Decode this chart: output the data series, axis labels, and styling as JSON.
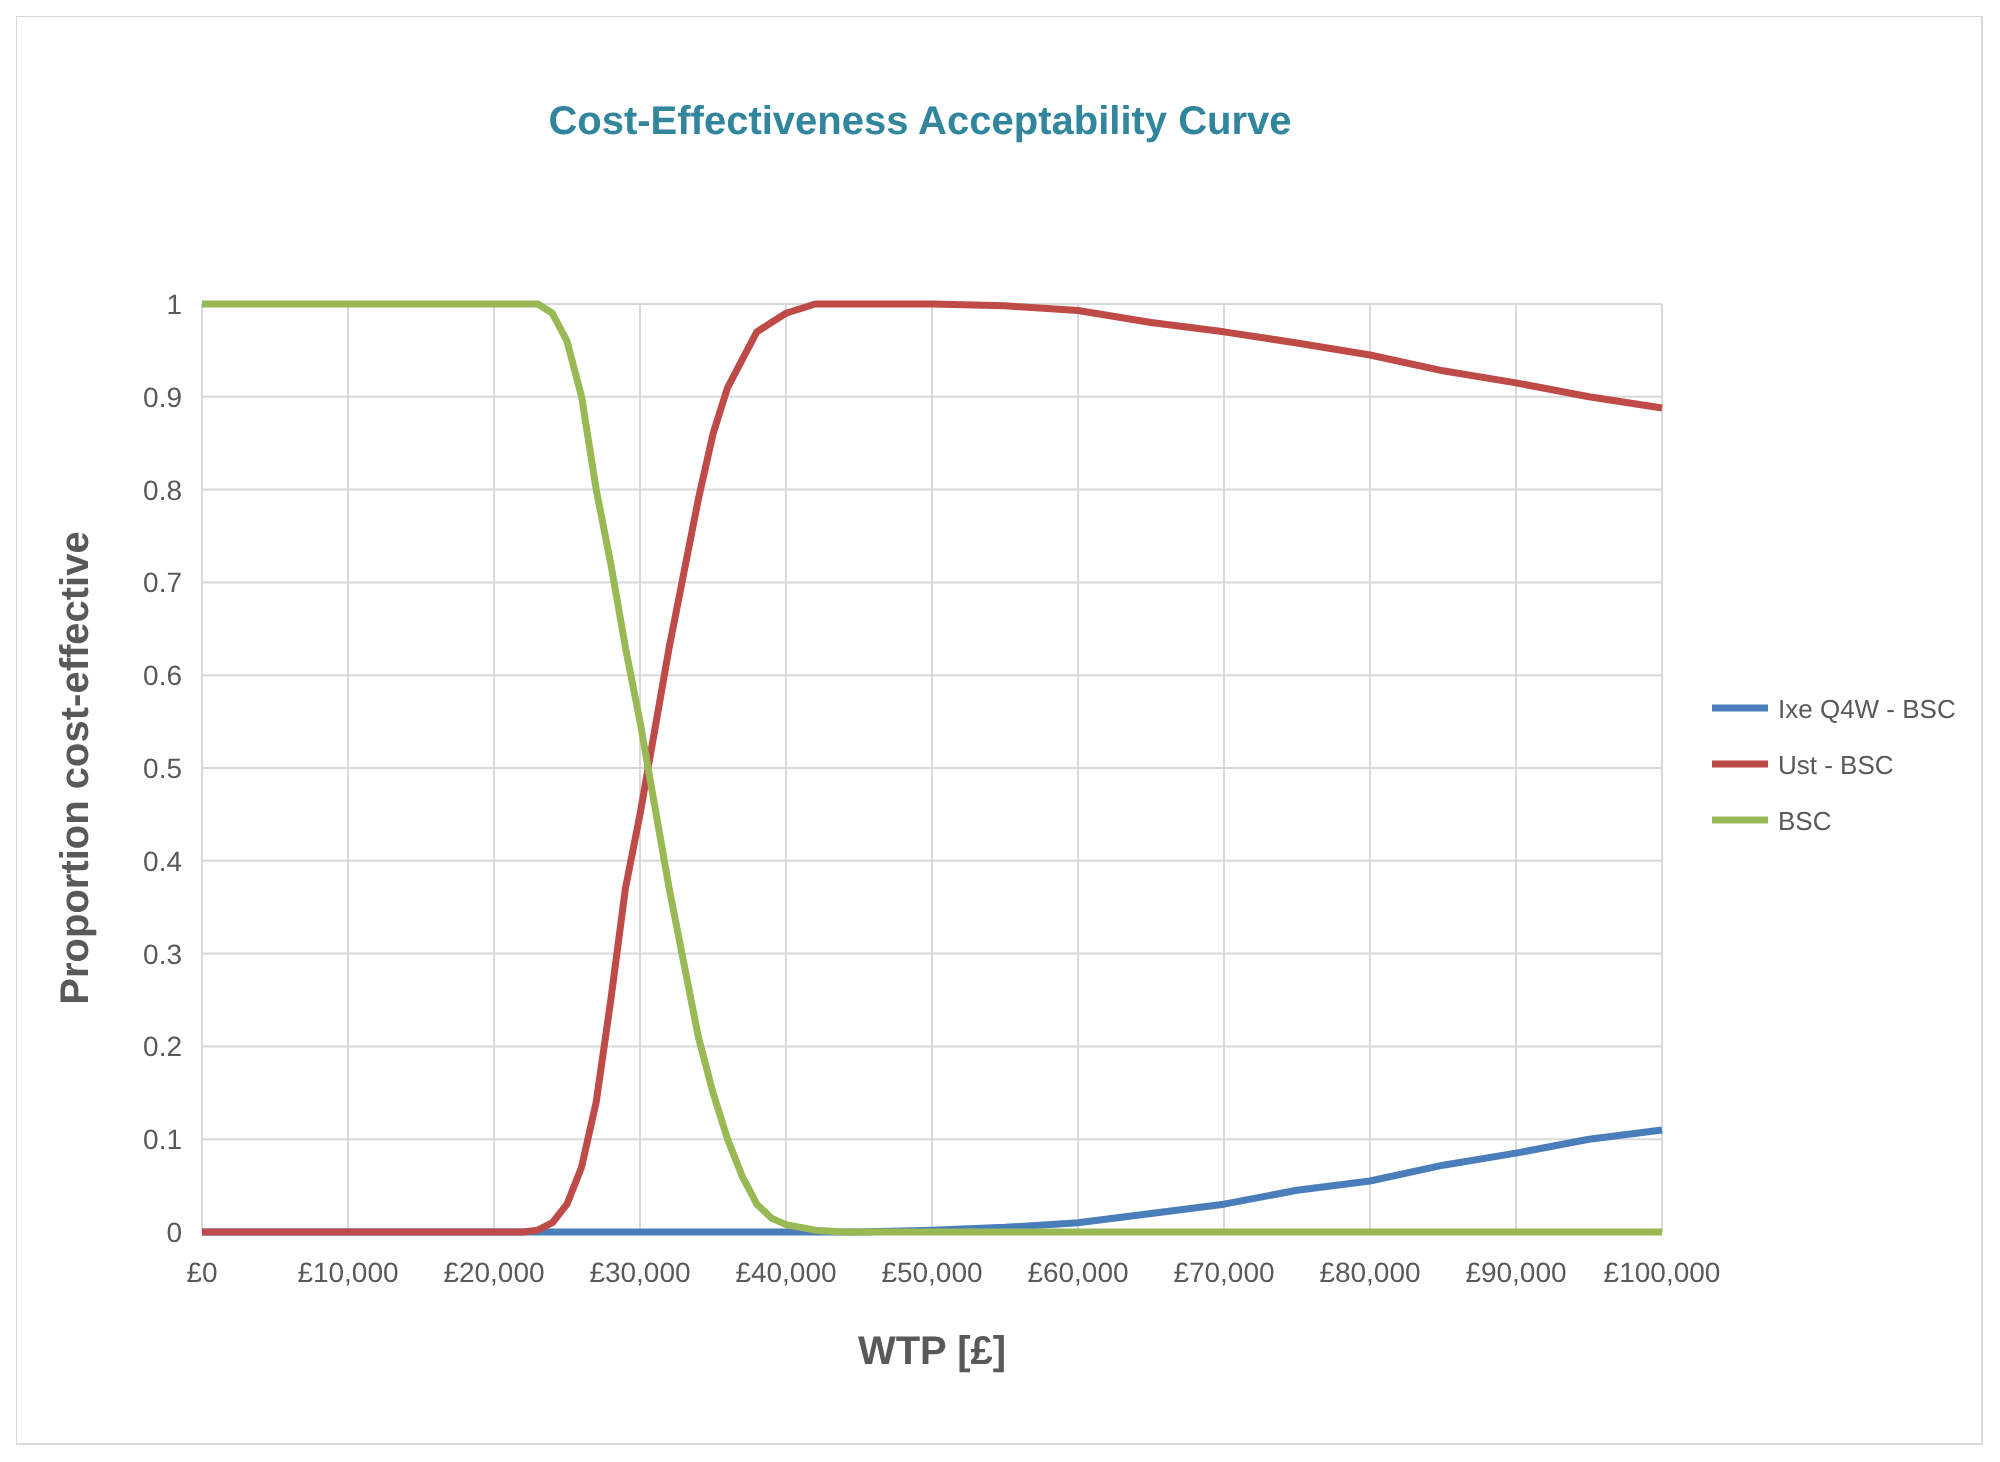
{
  "chart_data": {
    "type": "line",
    "title": "Cost-Effectiveness Acceptability Curve",
    "xlabel": "WTP [£]",
    "ylabel": "Proportion cost-effective",
    "xlim": [
      0,
      100000
    ],
    "ylim": [
      0,
      1
    ],
    "xticks": [
      {
        "value": 0,
        "label": "£0"
      },
      {
        "value": 10000,
        "label": "£10,000"
      },
      {
        "value": 20000,
        "label": "£20,000"
      },
      {
        "value": 30000,
        "label": "£30,000"
      },
      {
        "value": 40000,
        "label": "£40,000"
      },
      {
        "value": 50000,
        "label": "£50,000"
      },
      {
        "value": 60000,
        "label": "£60,000"
      },
      {
        "value": 70000,
        "label": "£70,000"
      },
      {
        "value": 80000,
        "label": "£80,000"
      },
      {
        "value": 90000,
        "label": "£90,000"
      },
      {
        "value": 100000,
        "label": "£100,000"
      }
    ],
    "yticks": [
      0,
      0.1,
      0.2,
      0.3,
      0.4,
      0.5,
      0.6,
      0.7,
      0.8,
      0.9,
      1
    ],
    "grid": true,
    "legend": "right",
    "marker": "none",
    "line_style": "solid",
    "series": [
      {
        "name": "Ixe Q4W - BSC",
        "color": "#4a7ebb",
        "x": [
          0,
          45000,
          50000,
          55000,
          60000,
          65000,
          70000,
          75000,
          80000,
          85000,
          90000,
          95000,
          100000
        ],
        "values": [
          0,
          0,
          0.002,
          0.005,
          0.01,
          0.02,
          0.03,
          0.045,
          0.055,
          0.072,
          0.085,
          0.1,
          0.11
        ]
      },
      {
        "name": "Ust - BSC",
        "color": "#be4b48",
        "x": [
          0,
          22000,
          23000,
          24000,
          25000,
          26000,
          27000,
          28000,
          29000,
          30000,
          31000,
          32000,
          33000,
          34000,
          35000,
          36000,
          37000,
          38000,
          39000,
          40000,
          42000,
          50000,
          55000,
          60000,
          65000,
          70000,
          75000,
          80000,
          85000,
          90000,
          95000,
          100000
        ],
        "values": [
          0,
          0,
          0.002,
          0.01,
          0.03,
          0.07,
          0.14,
          0.25,
          0.37,
          0.45,
          0.54,
          0.63,
          0.71,
          0.79,
          0.86,
          0.91,
          0.94,
          0.97,
          0.98,
          0.99,
          1,
          1,
          0.998,
          0.993,
          0.98,
          0.97,
          0.958,
          0.945,
          0.928,
          0.915,
          0.9,
          0.888
        ]
      },
      {
        "name": "BSC",
        "color": "#98b954",
        "x": [
          0,
          23000,
          24000,
          25000,
          26000,
          27000,
          28000,
          29000,
          30000,
          31000,
          32000,
          33000,
          34000,
          35000,
          36000,
          37000,
          38000,
          39000,
          40000,
          42000,
          44000,
          100000
        ],
        "values": [
          1,
          1,
          0.99,
          0.96,
          0.9,
          0.8,
          0.72,
          0.63,
          0.55,
          0.46,
          0.37,
          0.29,
          0.21,
          0.15,
          0.1,
          0.06,
          0.03,
          0.015,
          0.008,
          0.002,
          0,
          0
        ]
      }
    ]
  }
}
